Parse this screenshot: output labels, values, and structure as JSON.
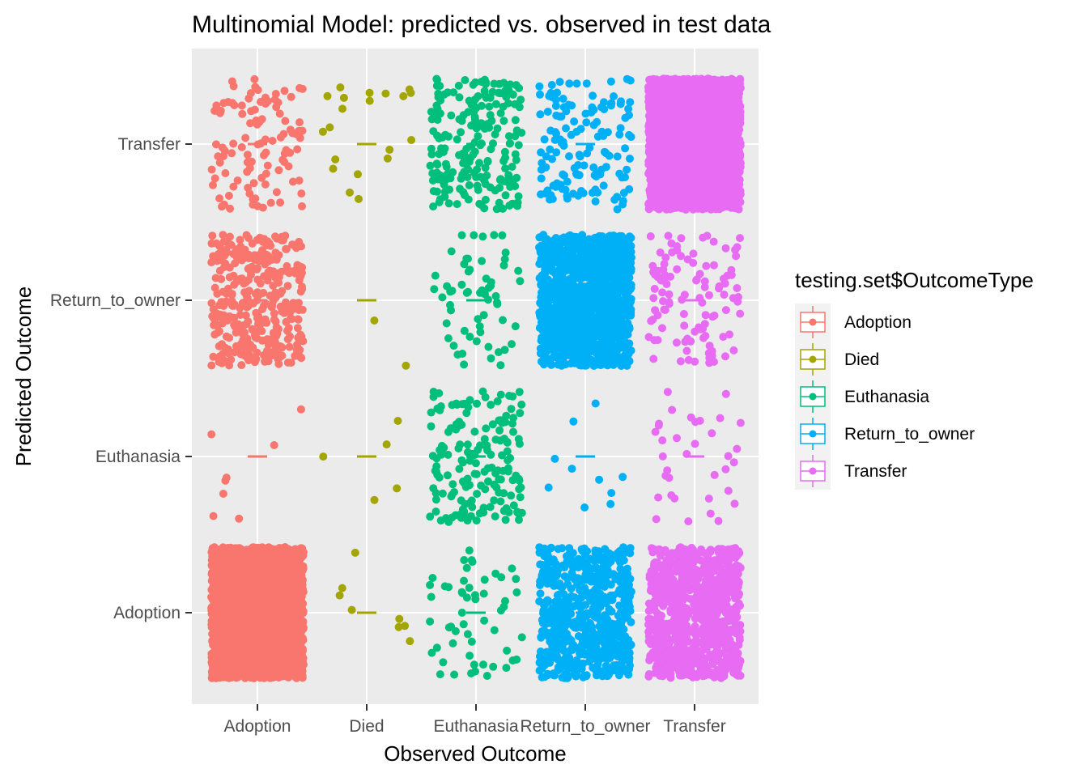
{
  "chart_data": {
    "type": "scatter",
    "title": "Multinomial Model: predicted vs. observed in test data",
    "xlabel": "Observed Outcome",
    "ylabel": "Predicted Outcome",
    "x_categories": [
      "Adoption",
      "Died",
      "Euthanasia",
      "Return_to_owner",
      "Transfer"
    ],
    "y_categories": [
      "Adoption",
      "Euthanasia",
      "Return_to_owner",
      "Transfer"
    ],
    "jitter": true,
    "grid": true,
    "legend": {
      "title": "testing.set$OutcomeType",
      "position": "right",
      "entries": [
        "Adoption",
        "Died",
        "Euthanasia",
        "Return_to_owner",
        "Transfer"
      ]
    },
    "colors": {
      "Adoption": "#F8766D",
      "Died": "#A3A500",
      "Euthanasia": "#00BF7D",
      "Return_to_owner": "#00B0F6",
      "Transfer": "#E76BF3"
    },
    "series": [
      {
        "name": "Adoption",
        "counts": {
          "Adoption": 2500,
          "Euthanasia": 8,
          "Return_to_owner": 360,
          "Transfer": 110
        }
      },
      {
        "name": "Died",
        "counts": {
          "Adoption": 8,
          "Euthanasia": 5,
          "Return_to_owner": 2,
          "Transfer": 20
        }
      },
      {
        "name": "Euthanasia",
        "counts": {
          "Adoption": 55,
          "Euthanasia": 170,
          "Return_to_owner": 60,
          "Transfer": 210
        }
      },
      {
        "name": "Return_to_owner",
        "counts": {
          "Adoption": 650,
          "Euthanasia": 10,
          "Return_to_owner": 1300,
          "Transfer": 140
        }
      },
      {
        "name": "Transfer",
        "counts": {
          "Adoption": 900,
          "Euthanasia": 35,
          "Return_to_owner": 110,
          "Transfer": 2700
        }
      }
    ]
  }
}
